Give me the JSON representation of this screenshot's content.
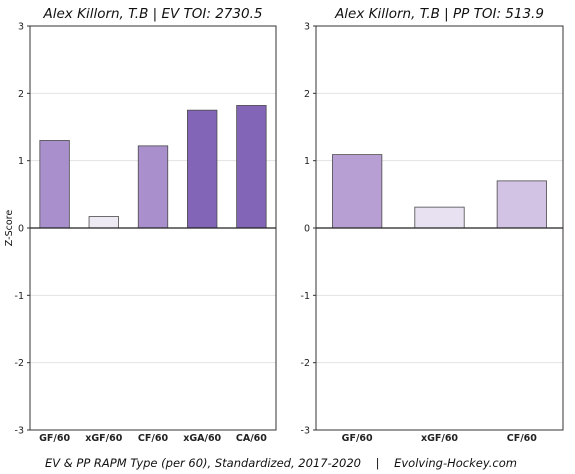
{
  "chart_data": [
    {
      "type": "bar",
      "title": "Alex Killorn, T.B  |  EV TOI: 2730.5",
      "ylabel": "Z-Score",
      "ylim": [
        -3,
        3
      ],
      "yticks": [
        "-3",
        "-2",
        "-1",
        "0",
        "1",
        "2",
        "3"
      ],
      "grid": true,
      "categories": [
        "GF/60",
        "xGF/60",
        "CF/60",
        "xGA/60",
        "CA/60"
      ],
      "values": [
        1.3,
        0.17,
        1.22,
        1.75,
        1.82
      ],
      "colors": [
        "#a98fcb",
        "#edeaf3",
        "#a98fcb",
        "#8365b7",
        "#8365b7"
      ]
    },
    {
      "type": "bar",
      "title": "Alex Killorn, T.B  |  PP TOI: 513.9",
      "ylabel": "",
      "ylim": [
        -3,
        3
      ],
      "yticks": [
        "-3",
        "-2",
        "-1",
        "0",
        "1",
        "2",
        "3"
      ],
      "grid": true,
      "categories": [
        "GF/60",
        "xGF/60",
        "CF/60"
      ],
      "values": [
        1.09,
        0.31,
        0.7
      ],
      "colors": [
        "#b79fd4",
        "#e8e1f1",
        "#d2c3e4"
      ]
    }
  ],
  "caption": "EV & PP RAPM Type (per 60), Standardized, 2017-2020    |    Evolving-Hockey.com"
}
